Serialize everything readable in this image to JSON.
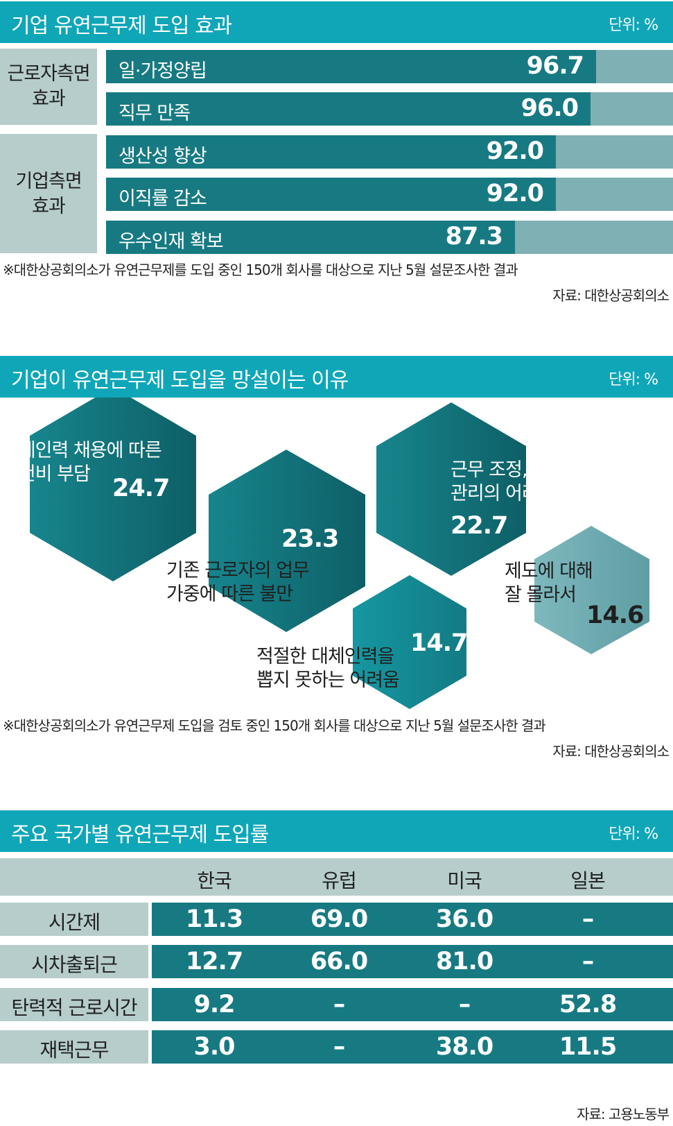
{
  "colors": {
    "title_bar": "#0fa6b8",
    "dark_teal": "#177a82",
    "light_teal": "#7fb0b3",
    "label_bg": "#b6cdcb"
  },
  "section1": {
    "title": "기업 유연근무제 도입 효과",
    "unit": "단위: %",
    "groups": [
      {
        "label_line1": "근로자측면",
        "label_line2": "효과"
      },
      {
        "label_line1": "기업측면",
        "label_line2": "효과"
      }
    ],
    "note": "※대한상공회의소가 유연근무제를 도입 중인 150개 회사를 대상으로 지난 5월 설문조사한 결과",
    "source": "자료: 대한상공회의소"
  },
  "section2": {
    "title": "기업이 유연근무제 도입을 망설이는 이유",
    "unit": "단위: %",
    "note": "※대한상공회의소가 유연근무제 도입을 검토 중인 150개 회사를 대상으로 지난 5월 설문조사한 결과",
    "source": "자료: 대한상공회의소"
  },
  "section3": {
    "title": "주요 국가별 유연근무제 도입률",
    "unit": "단위: %",
    "source": "자료: 고용노동부"
  },
  "chart_data": [
    {
      "type": "bar",
      "title": "기업 유연근무제 도입 효과",
      "unit": "단위: %",
      "categories": [
        "일·가정양립",
        "직무 만족",
        "생산성 향상",
        "이직률 감소",
        "우수인재 확보"
      ],
      "groups": [
        "근로자측면 효과",
        "근로자측면 효과",
        "기업측면 효과",
        "기업측면 효과",
        "기업측면 효과"
      ],
      "values": [
        96.7,
        96.0,
        92.0,
        92.0,
        87.3
      ],
      "value_labels": [
        "96.7",
        "96.0",
        "92.0",
        "92.0",
        "87.3"
      ],
      "xlim": [
        0,
        100
      ]
    },
    {
      "type": "bubble",
      "title": "기업이 유연근무제 도입을 망설이는 이유",
      "unit": "단위: %",
      "items": [
        {
          "line1": "대체인력 채용에 따른",
          "line2": "인건비 부담",
          "value": 24.7,
          "value_label": "24.7"
        },
        {
          "line1": "기존 근로자의 업무",
          "line2": "가중에 따른 불만",
          "value": 23.3,
          "value_label": "23.3"
        },
        {
          "line1": "근무 조정, 평가 등 인사",
          "line2": "관리의 어려움",
          "value": 22.7,
          "value_label": "22.7"
        },
        {
          "line1": "적절한 대체인력을",
          "line2": "뽑지 못하는 어려움",
          "value": 14.7,
          "value_label": "14.7"
        },
        {
          "line1": "제도에 대해",
          "line2": "잘 몰라서",
          "value": 14.6,
          "value_label": "14.6"
        }
      ]
    },
    {
      "type": "table",
      "title": "주요 국가별 유연근무제 도입률",
      "unit": "단위: %",
      "columns": [
        "한국",
        "유럽",
        "미국",
        "일본"
      ],
      "rows": [
        {
          "label": "시간제",
          "values": [
            "11.3",
            "69.0",
            "36.0",
            "–"
          ]
        },
        {
          "label": "시차출퇴근",
          "values": [
            "12.7",
            "66.0",
            "81.0",
            "–"
          ]
        },
        {
          "label": "탄력적 근로시간",
          "values": [
            "9.2",
            "–",
            "–",
            "52.8"
          ]
        },
        {
          "label": "재택근무",
          "values": [
            "3.0",
            "–",
            "38.0",
            "11.5"
          ]
        }
      ]
    }
  ]
}
